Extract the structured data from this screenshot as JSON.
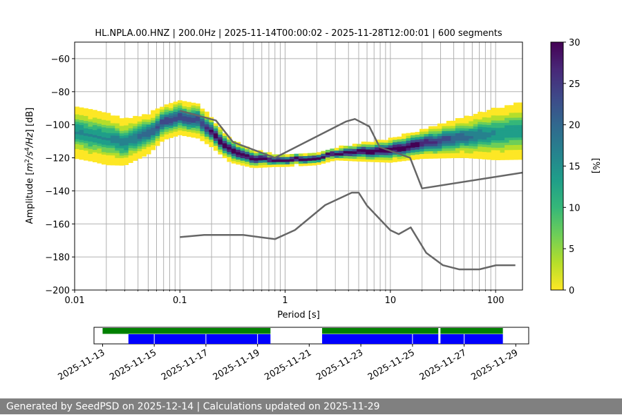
{
  "colors": {
    "reference_line": "#666666",
    "grid": "#b0b0b0",
    "availability_bar": "#008000",
    "data_bar": "#0000ff",
    "footer_background": "#808080",
    "footer_text": "#ffffff",
    "colormap": [
      "#fde725",
      "#b5de2b",
      "#6ece58",
      "#35b779",
      "#1f9e89",
      "#26828e",
      "#31688e",
      "#3e4989",
      "#482878",
      "#440154"
    ]
  },
  "footer": {
    "text": "Generated by SeedPSD on 2025-12-14 | Calculations updated on 2025-11-29"
  },
  "chart_data": [
    {
      "type": "heatmap",
      "title": "HL.NPLA.00.HNZ | 200.0Hz | 2025-11-14T00:00:02 - 2025-11-28T12:00:01 | 600 segments",
      "xlabel": "Period [s]",
      "ylabel_parts": [
        "Amplitude [",
        "m",
        "2",
        "/",
        "s",
        "4",
        "/",
        "Hz",
        "] [dB]"
      ],
      "xscale": "log",
      "xlim": [
        0.01,
        180
      ],
      "ylim": [
        -200,
        -50
      ],
      "xticks": [
        {
          "value": 0.01,
          "label": "0.01"
        },
        {
          "value": 0.1,
          "label": "0.1"
        },
        {
          "value": 1,
          "label": "1"
        },
        {
          "value": 10,
          "label": "10"
        },
        {
          "value": 100,
          "label": "100"
        }
      ],
      "yticks": [
        {
          "value": -60,
          "label": "−60"
        },
        {
          "value": -80,
          "label": "−80"
        },
        {
          "value": -100,
          "label": "−100"
        },
        {
          "value": -120,
          "label": "−120"
        },
        {
          "value": -140,
          "label": "−140"
        },
        {
          "value": -160,
          "label": "−160"
        },
        {
          "value": -180,
          "label": "−180"
        },
        {
          "value": -200,
          "label": "−200"
        }
      ],
      "grid": true,
      "colorbar": {
        "label": "[%]",
        "range": [
          0,
          30
        ],
        "ticks": [
          {
            "value": 0,
            "label": "0"
          },
          {
            "value": 5,
            "label": "5"
          },
          {
            "value": 10,
            "label": "10"
          },
          {
            "value": 15,
            "label": "15"
          },
          {
            "value": 20,
            "label": "20"
          },
          {
            "value": 25,
            "label": "25"
          },
          {
            "value": 30,
            "label": "30"
          }
        ]
      },
      "psd_mode": {
        "period": [
          0.01,
          0.015,
          0.02,
          0.03,
          0.05,
          0.07,
          0.1,
          0.15,
          0.2,
          0.3,
          0.5,
          0.8,
          1.0,
          2.0,
          3.0,
          5.0,
          10.0,
          20.0,
          50.0,
          100.0,
          180.0
        ],
        "mode_db": [
          -105,
          -107,
          -109,
          -111,
          -106,
          -99,
          -96,
          -98,
          -105,
          -116,
          -121,
          -122,
          -122,
          -121,
          -118,
          -117,
          -116,
          -112,
          -108,
          -106,
          -104
        ],
        "spread_db": [
          9,
          9,
          9,
          8,
          7,
          6,
          6,
          6,
          5,
          4,
          3,
          2,
          2,
          2,
          2,
          3,
          4,
          5,
          7,
          9,
          10
        ]
      },
      "nhnm": {
        "period": [
          0.1,
          0.22,
          0.32,
          0.8,
          3.8,
          4.6,
          6.3,
          7.9,
          15.4,
          20,
          354.8
        ],
        "db": [
          -91.5,
          -97.4,
          -110.5,
          -120,
          -98,
          -96.5,
          -101,
          -113.5,
          -120,
          -138.5,
          -126
        ]
      },
      "nlnm": {
        "period": [
          0.1,
          0.17,
          0.4,
          0.8,
          1.24,
          2.4,
          4.3,
          5.0,
          6.0,
          10.0,
          12.0,
          15.6,
          21.9,
          31.6,
          45,
          70,
          101,
          154
        ],
        "db": [
          -168,
          -166.7,
          -166.7,
          -169.2,
          -163.7,
          -148.6,
          -141.1,
          -141.1,
          -149.0,
          -163.8,
          -166.2,
          -162.1,
          -177.5,
          -185.0,
          -187.5,
          -187.5,
          -185.0,
          -185.0
        ]
      }
    },
    {
      "type": "timeline",
      "xlim": [
        "2025-11-12T16:00:00",
        "2025-11-29T12:00:00"
      ],
      "xticks": [
        "2025-11-13",
        "2025-11-15",
        "2025-11-17",
        "2025-11-19",
        "2025-11-21",
        "2025-11-23",
        "2025-11-25",
        "2025-11-27",
        "2025-11-29"
      ],
      "availability": [
        {
          "start": "2025-11-13T00:00:00",
          "end": "2025-11-19T12:00:00"
        },
        {
          "start": "2025-11-21T12:00:00",
          "end": "2025-11-26T00:00:00"
        },
        {
          "start": "2025-11-26T02:00:00",
          "end": "2025-11-28T12:00:00"
        }
      ],
      "processed": [
        {
          "start": "2025-11-14T00:00:00",
          "end": "2025-11-19T12:00:00"
        },
        {
          "start": "2025-11-21T12:00:00",
          "end": "2025-11-26T00:00:00"
        },
        {
          "start": "2025-11-26T02:00:00",
          "end": "2025-11-28T12:00:00"
        }
      ],
      "processed_breaks": [
        "2025-11-15T00:00:00",
        "2025-11-17T00:00:00",
        "2025-11-19T00:00:00",
        "2025-11-25T00:00:00",
        "2025-11-27T00:00:00"
      ]
    }
  ]
}
